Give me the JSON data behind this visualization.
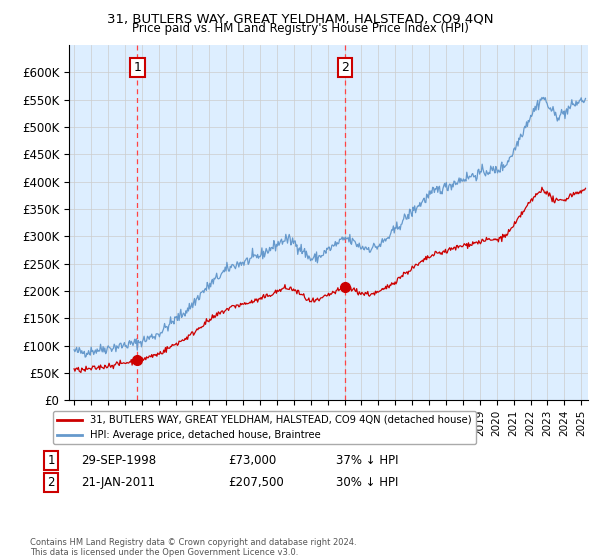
{
  "title1": "31, BUTLERS WAY, GREAT YELDHAM, HALSTEAD, CO9 4QN",
  "title2": "Price paid vs. HM Land Registry's House Price Index (HPI)",
  "ylim": [
    0,
    650000
  ],
  "yticks": [
    0,
    50000,
    100000,
    150000,
    200000,
    250000,
    300000,
    350000,
    400000,
    450000,
    500000,
    550000,
    600000
  ],
  "ytick_labels": [
    "£0",
    "£50K",
    "£100K",
    "£150K",
    "£200K",
    "£250K",
    "£300K",
    "£350K",
    "£400K",
    "£450K",
    "£500K",
    "£550K",
    "£600K"
  ],
  "xlim_start": 1994.7,
  "xlim_end": 2025.4,
  "purchase1_x": 1998.75,
  "purchase1_y": 73000,
  "purchase1_label": "1",
  "purchase2_x": 2011.05,
  "purchase2_y": 207500,
  "purchase2_label": "2",
  "hpi_color": "#6699cc",
  "price_color": "#cc0000",
  "grid_color": "#cccccc",
  "background_color": "#ddeeff",
  "legend_line1": "31, BUTLERS WAY, GREAT YELDHAM, HALSTEAD, CO9 4QN (detached house)",
  "legend_line2": "HPI: Average price, detached house, Braintree",
  "footnote": "Contains HM Land Registry data © Crown copyright and database right 2024.\nThis data is licensed under the Open Government Licence v3.0."
}
